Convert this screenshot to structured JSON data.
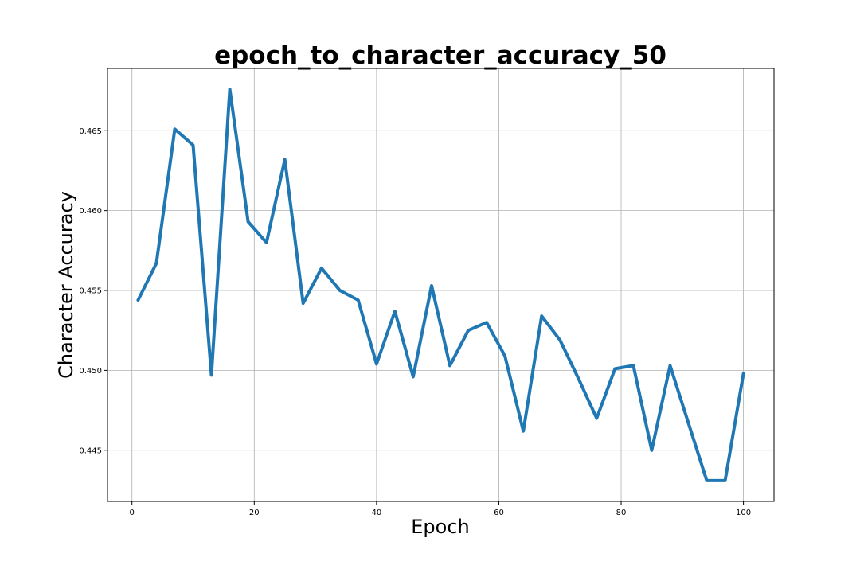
{
  "chart_data": {
    "type": "line",
    "title": "epoch_to_character_accuracy_50",
    "xlabel": "Epoch",
    "ylabel": "Character Accuracy",
    "xlim": [
      -4,
      105
    ],
    "ylim": [
      0.4418,
      0.4689
    ],
    "xticks": [
      0,
      20,
      40,
      60,
      80,
      100
    ],
    "yticks": [
      0.445,
      0.45,
      0.455,
      0.46,
      0.465
    ],
    "ytick_labels": [
      "0.445",
      "0.450",
      "0.455",
      "0.460",
      "0.465"
    ],
    "xtick_labels": [
      "0",
      "20",
      "40",
      "60",
      "80",
      "100"
    ],
    "grid": true,
    "series": [
      {
        "color": "#1f77b4",
        "x": [
          1,
          4,
          7,
          10,
          13,
          16,
          19,
          22,
          25,
          28,
          31,
          34,
          37,
          40,
          43,
          46,
          49,
          52,
          55,
          58,
          61,
          64,
          67,
          70,
          73,
          76,
          79,
          82,
          85,
          88,
          91,
          94,
          97,
          100
        ],
        "y": [
          0.4544,
          0.4567,
          0.4651,
          0.4641,
          0.4497,
          0.4676,
          0.4593,
          0.458,
          0.4632,
          0.4542,
          0.4564,
          0.455,
          0.4544,
          0.4504,
          0.4537,
          0.4496,
          0.4553,
          0.4503,
          0.4525,
          0.453,
          0.4509,
          0.4462,
          0.4534,
          0.4519,
          0.4495,
          0.447,
          0.4501,
          0.4503,
          0.445,
          0.4503,
          0.4467,
          0.4431,
          0.4431,
          0.4498
        ]
      }
    ]
  }
}
